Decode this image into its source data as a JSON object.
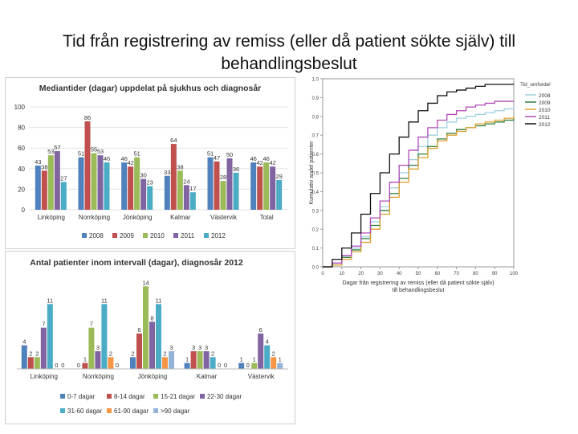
{
  "slide": {
    "title": "Tid från registrering av remiss (eller då patient sökte själv) till behandlingsbeslut"
  },
  "chart_data": [
    {
      "type": "bar",
      "title": "Mediantider (dagar) uppdelat på sjukhus och diagnosår",
      "categories": [
        "Linköping",
        "Norrköping",
        "Jönköping",
        "Kalmar",
        "Västervik",
        "Total"
      ],
      "ylim": [
        0,
        100
      ],
      "yticks": [
        0,
        20,
        40,
        60,
        80,
        100
      ],
      "legend_position": "bottom",
      "series": [
        {
          "name": "2008",
          "color": "#4F81BD",
          "values": [
            43,
            51,
            46,
            33,
            51,
            46
          ]
        },
        {
          "name": "2009",
          "color": "#C0504D",
          "values": [
            38,
            86,
            42,
            64,
            47,
            42
          ]
        },
        {
          "name": "2010",
          "color": "#9BBB59",
          "values": [
            53,
            55,
            51,
            38,
            28,
            46
          ]
        },
        {
          "name": "2011",
          "color": "#8064A2",
          "values": [
            57,
            53,
            30,
            24,
            50,
            42
          ]
        },
        {
          "name": "2012",
          "color": "#4BACC6",
          "values": [
            27,
            46,
            23,
            17,
            36,
            29
          ]
        }
      ]
    },
    {
      "type": "bar",
      "title": "Antal patienter inom intervall (dagar), diagnosår 2012",
      "categories": [
        "Linköping",
        "Norrköping",
        "Jönköping",
        "Kalmar",
        "Västervik"
      ],
      "ylim": [
        0,
        15
      ],
      "legend_position": "bottom",
      "series": [
        {
          "name": "0-7 dagar",
          "color": "#4F81BD",
          "values": [
            4,
            0,
            2,
            1,
            1
          ]
        },
        {
          "name": "8-14 dagar",
          "color": "#C0504D",
          "values": [
            2,
            1,
            6,
            3,
            0
          ]
        },
        {
          "name": "15-21 dagar",
          "color": "#9BBB59",
          "values": [
            2,
            7,
            14,
            3,
            1
          ]
        },
        {
          "name": "22-30 dagar",
          "color": "#8064A2",
          "values": [
            7,
            3,
            8,
            3,
            6
          ]
        },
        {
          "name": "31-60 dagar",
          "color": "#4BACC6",
          "values": [
            11,
            11,
            11,
            2,
            4
          ]
        },
        {
          "name": "61-90 dagar",
          "color": "#F79646",
          "values": [
            0,
            2,
            2,
            0,
            2
          ]
        },
        {
          "name": ">90 dagar",
          "color": "#95B3D7",
          "values": [
            0,
            0,
            3,
            0,
            1
          ]
        }
      ]
    },
    {
      "type": "line",
      "title": "",
      "xlabel": "Dagar från registrering av remiss (eller då patient sökte själv) till behandlingsbeslut",
      "ylabel": "Kumulativ andel patienter",
      "xlim": [
        0,
        100
      ],
      "ylim": [
        0,
        1
      ],
      "xticks": [
        0,
        10,
        20,
        30,
        40,
        50,
        60,
        70,
        80,
        90,
        100
      ],
      "yticks": [
        0.0,
        0.1,
        0.2,
        0.3,
        0.4,
        0.5,
        0.6,
        0.7,
        0.8,
        0.9,
        1.0
      ],
      "legend_title": "Tid_omfordel",
      "legend_position": "right",
      "x": [
        0,
        5,
        10,
        15,
        20,
        25,
        30,
        35,
        40,
        45,
        50,
        55,
        60,
        65,
        70,
        75,
        80,
        85,
        90,
        95,
        100
      ],
      "series": [
        {
          "name": "2008",
          "color": "#9fd0e0",
          "values": [
            0,
            0.02,
            0.06,
            0.1,
            0.16,
            0.24,
            0.32,
            0.42,
            0.5,
            0.57,
            0.64,
            0.7,
            0.74,
            0.77,
            0.79,
            0.8,
            0.81,
            0.82,
            0.83,
            0.84,
            0.85
          ]
        },
        {
          "name": "2009",
          "color": "#2e7d3a",
          "values": [
            0,
            0.01,
            0.05,
            0.09,
            0.15,
            0.22,
            0.3,
            0.39,
            0.47,
            0.54,
            0.6,
            0.64,
            0.68,
            0.71,
            0.73,
            0.74,
            0.75,
            0.76,
            0.77,
            0.78,
            0.79
          ]
        },
        {
          "name": "2010",
          "color": "#e0a030",
          "values": [
            0,
            0.01,
            0.04,
            0.08,
            0.13,
            0.2,
            0.28,
            0.37,
            0.45,
            0.52,
            0.58,
            0.63,
            0.67,
            0.7,
            0.72,
            0.74,
            0.76,
            0.77,
            0.78,
            0.79,
            0.8
          ]
        },
        {
          "name": "2011",
          "color": "#b04ab8",
          "values": [
            0,
            0.02,
            0.06,
            0.11,
            0.18,
            0.26,
            0.35,
            0.45,
            0.54,
            0.62,
            0.69,
            0.74,
            0.78,
            0.81,
            0.83,
            0.85,
            0.86,
            0.87,
            0.88,
            0.88,
            0.88
          ]
        },
        {
          "name": "2012",
          "color": "#111111",
          "values": [
            0,
            0.04,
            0.1,
            0.18,
            0.28,
            0.39,
            0.5,
            0.6,
            0.69,
            0.77,
            0.83,
            0.87,
            0.91,
            0.93,
            0.94,
            0.95,
            0.96,
            0.97,
            0.97,
            0.97,
            0.97
          ]
        }
      ]
    }
  ]
}
